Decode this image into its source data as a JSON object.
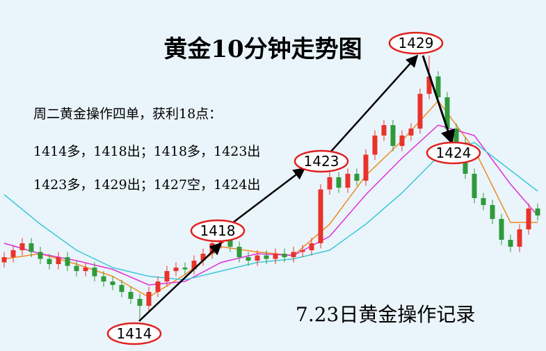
{
  "chart_data": {
    "type": "candlestick",
    "title": "黄金10分钟走势图",
    "notes": [
      "周二黄金操作四单，获利18点：",
      "1414多，1418出；1418多，1423出",
      "1423多，1429出；1427空，1424出"
    ],
    "footer": "7.23日黄金操作记录",
    "annotations": [
      "1414",
      "1418",
      "1423",
      "1429",
      "1424"
    ],
    "up_color": "#e8332b",
    "down_color": "#2e9a3a",
    "ylim": [
      1412.2,
      1432.4
    ],
    "open": [
      1417.3,
      1417.6,
      1418.0,
      1418.4,
      1417.9,
      1417.5,
      1417.2,
      1417.6,
      1417.1,
      1416.8,
      1417.0,
      1416.5,
      1416.2,
      1416.0,
      1415.6,
      1415.2,
      1414.8,
      1415.6,
      1416.2,
      1416.8,
      1417.0,
      1416.9,
      1417.4,
      1417.8,
      1418.4,
      1419.0,
      1418.2,
      1417.6,
      1417.4,
      1417.7,
      1417.5,
      1417.8,
      1417.6,
      1417.9,
      1418.0,
      1418.4,
      1421.5,
      1422.2,
      1421.6,
      1422.4,
      1422.0,
      1423.5,
      1424.6,
      1425.2,
      1424.0,
      1424.6,
      1425.0,
      1427.0,
      1428.0,
      1426.8,
      1425.0,
      1424.2,
      1422.4,
      1421.0,
      1420.6,
      1419.8,
      1418.6,
      1418.2,
      1419.2,
      1420.4
    ],
    "close": [
      1417.6,
      1418.0,
      1418.4,
      1417.9,
      1417.5,
      1417.2,
      1417.6,
      1417.1,
      1416.8,
      1417.0,
      1416.5,
      1416.2,
      1416.0,
      1415.6,
      1415.2,
      1414.8,
      1415.6,
      1416.2,
      1416.8,
      1417.0,
      1416.9,
      1417.4,
      1417.8,
      1418.4,
      1419.0,
      1418.2,
      1417.6,
      1417.4,
      1417.7,
      1417.5,
      1417.8,
      1417.6,
      1417.9,
      1418.0,
      1418.4,
      1421.5,
      1422.2,
      1421.6,
      1422.4,
      1422.0,
      1423.5,
      1424.6,
      1425.2,
      1424.0,
      1424.6,
      1425.0,
      1427.0,
      1428.0,
      1426.8,
      1425.0,
      1424.2,
      1422.4,
      1421.0,
      1420.6,
      1419.8,
      1418.6,
      1418.2,
      1419.2,
      1420.4,
      1420.0
    ],
    "high": [
      1417.9,
      1418.3,
      1418.7,
      1418.7,
      1418.2,
      1417.8,
      1417.9,
      1417.9,
      1417.4,
      1417.3,
      1417.3,
      1416.8,
      1416.5,
      1416.3,
      1415.9,
      1415.5,
      1415.9,
      1416.5,
      1417.1,
      1417.3,
      1417.3,
      1417.7,
      1418.1,
      1418.7,
      1419.3,
      1419.3,
      1418.5,
      1417.9,
      1418.0,
      1418.0,
      1418.1,
      1418.1,
      1418.2,
      1418.3,
      1418.7,
      1421.8,
      1422.5,
      1422.5,
      1422.7,
      1422.7,
      1423.8,
      1424.9,
      1425.5,
      1425.5,
      1424.9,
      1425.3,
      1427.3,
      1429.2,
      1428.3,
      1427.1,
      1425.3,
      1424.5,
      1422.7,
      1421.3,
      1420.9,
      1420.1,
      1418.9,
      1419.5,
      1420.7,
      1420.7
    ],
    "low": [
      1417.0,
      1417.3,
      1417.7,
      1417.6,
      1417.2,
      1416.9,
      1416.9,
      1416.8,
      1416.5,
      1416.5,
      1416.2,
      1415.9,
      1415.7,
      1415.3,
      1414.9,
      1414.0,
      1414.5,
      1415.3,
      1415.9,
      1416.5,
      1416.6,
      1416.6,
      1417.1,
      1417.5,
      1418.1,
      1417.9,
      1417.3,
      1417.1,
      1417.1,
      1417.2,
      1417.2,
      1417.3,
      1417.3,
      1417.6,
      1417.7,
      1418.1,
      1421.2,
      1421.3,
      1421.3,
      1421.7,
      1421.7,
      1423.2,
      1424.3,
      1423.7,
      1423.7,
      1424.3,
      1424.7,
      1426.7,
      1426.5,
      1424.7,
      1423.9,
      1422.1,
      1420.7,
      1420.3,
      1419.5,
      1418.3,
      1417.9,
      1417.9,
      1418.9,
      1419.7
    ],
    "series": [
      {
        "color": "#f08a1c",
        "x": [
          0,
          4,
          8,
          12,
          16,
          20,
          24,
          28,
          32,
          36,
          40,
          44,
          48,
          52,
          56,
          59
        ],
        "values": [
          1417.5,
          1417.8,
          1417.2,
          1416.5,
          1415.3,
          1416.6,
          1418.2,
          1417.9,
          1417.7,
          1419.5,
          1422.3,
          1424.3,
          1426.6,
          1423.8,
          1419.6,
          1419.6
        ]
      },
      {
        "color": "#e02fd8",
        "x": [
          0,
          4,
          8,
          12,
          16,
          20,
          24,
          28,
          32,
          36,
          40,
          44,
          48,
          52,
          56,
          59
        ],
        "values": [
          1418.4,
          1417.8,
          1417.4,
          1416.9,
          1416.0,
          1416.2,
          1417.3,
          1417.8,
          1417.7,
          1418.8,
          1421.2,
          1423.3,
          1425.2,
          1424.6,
          1421.8,
          1420.0
        ]
      },
      {
        "color": "#3cc8d8",
        "x": [
          0,
          4,
          8,
          12,
          16,
          20,
          24,
          28,
          32,
          36,
          40,
          44,
          48,
          52,
          56,
          59
        ],
        "values": [
          1421.2,
          1419.5,
          1418.0,
          1417.0,
          1416.5,
          1416.3,
          1416.8,
          1417.3,
          1417.5,
          1418.0,
          1419.5,
          1421.3,
          1423.4,
          1424.2,
          1422.6,
          1421.4
        ]
      }
    ]
  }
}
